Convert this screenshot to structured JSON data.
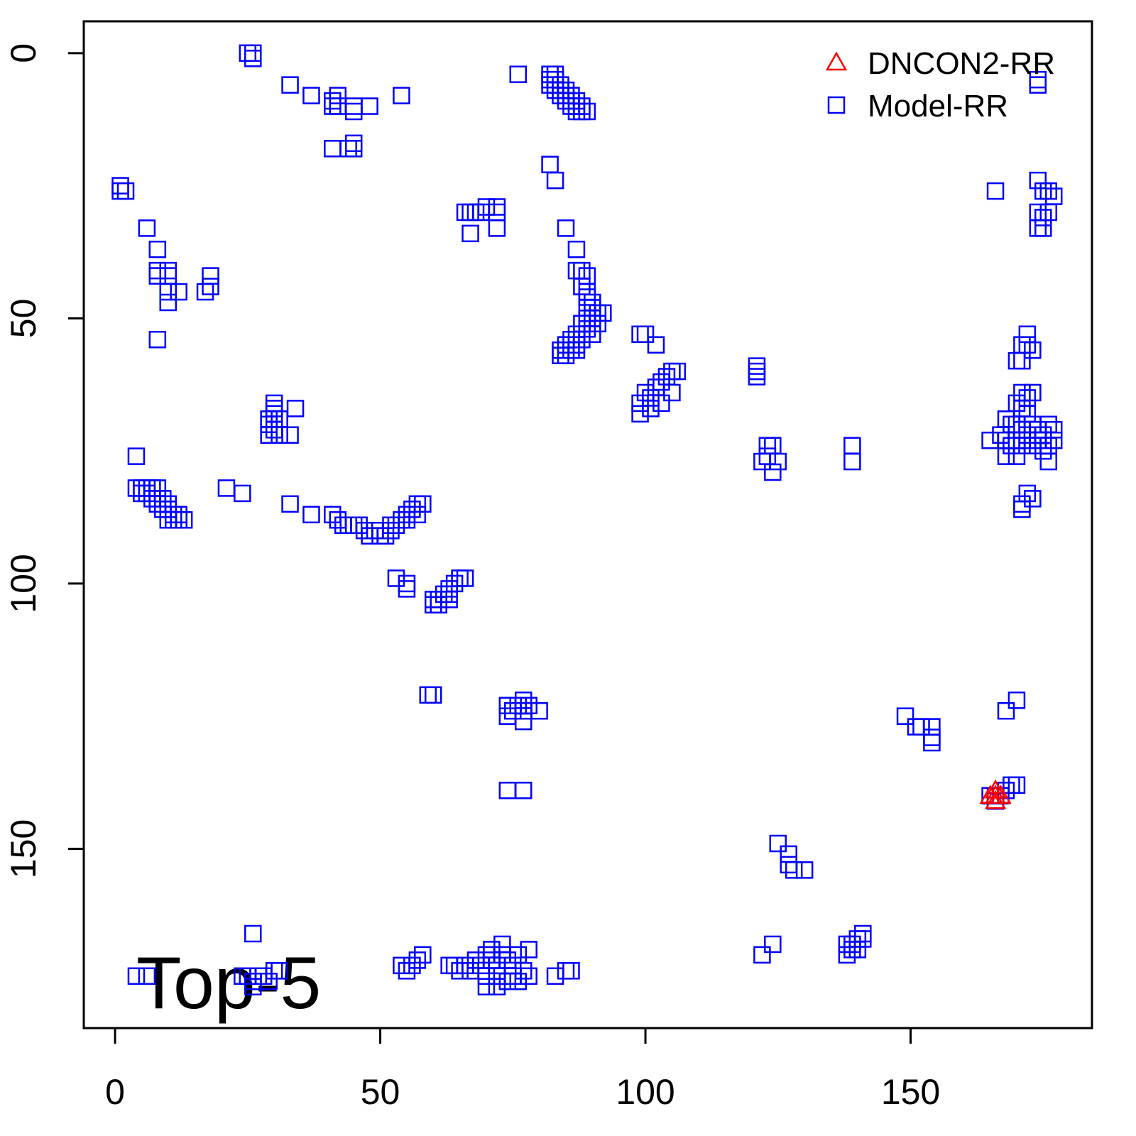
{
  "chart_data": {
    "type": "scatter",
    "annotation": "Top-5",
    "xlim": [
      -5.9,
      184.2
    ],
    "ylim": [
      183.8,
      -6
    ],
    "xticks": [
      0,
      50,
      100,
      150
    ],
    "yticks": [
      0,
      50,
      100,
      150
    ],
    "legend": "top-right",
    "series": [
      {
        "name": "DNCON2-RR",
        "color": "#ff0000",
        "marker": "triangle",
        "x": [
          165,
          166,
          167,
          166,
          166
        ],
        "values": [
          140,
          140,
          140,
          139,
          141
        ]
      },
      {
        "name": "Model-RR",
        "color": "#0000ff",
        "marker": "square",
        "x": [
          25,
          26,
          26,
          33,
          37,
          41,
          42,
          41,
          42,
          45,
          45,
          48,
          54,
          41,
          44,
          45,
          45,
          76,
          82,
          83,
          82,
          83,
          82,
          83,
          84,
          83,
          84,
          85,
          84,
          85,
          86,
          85,
          86,
          87,
          86,
          87,
          88,
          87,
          88,
          89,
          1,
          2,
          1,
          6,
          8,
          8,
          10,
          8,
          10,
          10,
          12,
          10,
          8,
          18,
          18,
          17,
          82,
          83,
          66,
          67,
          68,
          67,
          69,
          70,
          72,
          72,
          72,
          85,
          87,
          87,
          88,
          89,
          88,
          89,
          89,
          90,
          89,
          90,
          91,
          92,
          89,
          90,
          91,
          88,
          89,
          90,
          87,
          88,
          86,
          87,
          85,
          86,
          84,
          85,
          84,
          87,
          99,
          100,
          102,
          99,
          99,
          100,
          101,
          102,
          103,
          104,
          105,
          106,
          101,
          103,
          105,
          121,
          121,
          121,
          123,
          124,
          122,
          123,
          125,
          124,
          139,
          139,
          166,
          174,
          175,
          176,
          177,
          174,
          175,
          176,
          174,
          175,
          174,
          174,
          172,
          172,
          173,
          171,
          170,
          171,
          171,
          172,
          173,
          170,
          171,
          172,
          168,
          169,
          170,
          171,
          172,
          173,
          174,
          175,
          176,
          177,
          165,
          167,
          168,
          169,
          170,
          171,
          172,
          173,
          174,
          175,
          176,
          177,
          168,
          170,
          176,
          172,
          173,
          171,
          171,
          4,
          4,
          5,
          6,
          7,
          8,
          5,
          6,
          7,
          8,
          9,
          8,
          9,
          10,
          10,
          11,
          12,
          10,
          11,
          12,
          13,
          21,
          24,
          30,
          30,
          30,
          29,
          31,
          29,
          30,
          29,
          31,
          33,
          34,
          33,
          37,
          41,
          42,
          43,
          44,
          45,
          46,
          47,
          48,
          49,
          50,
          51,
          52,
          53,
          54,
          55,
          56,
          57,
          58,
          52,
          55,
          57,
          53,
          55,
          55,
          60,
          60,
          61,
          62,
          63,
          63,
          64,
          65,
          66,
          63,
          61,
          59,
          60,
          74,
          75,
          76,
          77,
          77,
          78,
          80,
          74,
          77,
          74,
          77,
          149,
          151,
          152,
          154,
          154,
          154,
          170,
          168,
          165,
          166,
          167,
          168,
          169,
          170,
          166,
          125,
          127,
          127,
          128,
          130,
          122,
          124,
          138,
          139,
          139,
          140,
          141,
          141,
          138,
          140,
          26,
          4,
          6,
          24,
          25,
          26,
          27,
          26,
          30,
          31,
          29,
          28,
          54,
          55,
          56,
          57,
          58,
          63,
          64,
          65,
          66,
          67,
          68,
          69,
          70,
          70,
          71,
          71,
          72,
          72,
          73,
          73,
          74,
          75,
          75,
          76,
          77,
          78,
          78,
          70,
          72,
          74,
          76,
          83,
          85,
          86
        ],
        "values": [
          0,
          0,
          1,
          6,
          8,
          9,
          8,
          10,
          10,
          10,
          11,
          10,
          8,
          18,
          18,
          17,
          18,
          4,
          4,
          4,
          5,
          5,
          6,
          6,
          6,
          7,
          7,
          7,
          8,
          8,
          8,
          9,
          9,
          9,
          10,
          10,
          10,
          11,
          11,
          11,
          25,
          26,
          26,
          33,
          37,
          41,
          41,
          42,
          42,
          45,
          45,
          47,
          54,
          42,
          44,
          45,
          21,
          24,
          30,
          30,
          30,
          34,
          30,
          29,
          29,
          30,
          33,
          33,
          37,
          41,
          41,
          42,
          44,
          45,
          46,
          47,
          48,
          48,
          49,
          49,
          50,
          50,
          51,
          51,
          52,
          53,
          53,
          54,
          54,
          55,
          55,
          56,
          56,
          57,
          57,
          56,
          53,
          53,
          55,
          68,
          66,
          64,
          65,
          63,
          62,
          61,
          60,
          60,
          67,
          66,
          64,
          59,
          60,
          61,
          74,
          74,
          77,
          76,
          77,
          79,
          74,
          77,
          26,
          24,
          26,
          26,
          27,
          30,
          31,
          30,
          33,
          33,
          5,
          6,
          53,
          55,
          56,
          55,
          58,
          58,
          64,
          65,
          64,
          66,
          67,
          68,
          69,
          70,
          70,
          71,
          72,
          70,
          71,
          72,
          70,
          71,
          73,
          72,
          73,
          74,
          73,
          74,
          73,
          74,
          73,
          75,
          74,
          73,
          76,
          76,
          77,
          83,
          84,
          85,
          86,
          76,
          82,
          82,
          82,
          82,
          82,
          83,
          83,
          84,
          84,
          84,
          85,
          86,
          85,
          86,
          87,
          87,
          88,
          88,
          88,
          88,
          82,
          83,
          66,
          67,
          68,
          69,
          69,
          70,
          71,
          72,
          72,
          72,
          67,
          85,
          87,
          87,
          88,
          89,
          89,
          89,
          89,
          90,
          91,
          90,
          91,
          91,
          90,
          89,
          88,
          87,
          86,
          85,
          85,
          89,
          88,
          87,
          99,
          100,
          101,
          103,
          104,
          103,
          102,
          101,
          102,
          100,
          99,
          99,
          103,
          104,
          121,
          121,
          123,
          124,
          123,
          122,
          124,
          123,
          124,
          125,
          126,
          139,
          139,
          125,
          127,
          127,
          127,
          129,
          130,
          122,
          124,
          140,
          140,
          140,
          139,
          138,
          138,
          141,
          149,
          151,
          153,
          154,
          154,
          170,
          168,
          168,
          168,
          169,
          167,
          166,
          167,
          170,
          169,
          166,
          174,
          174,
          174,
          174,
          175,
          174,
          176,
          173,
          173,
          175,
          174,
          172,
          173,
          172,
          171,
          170,
          172,
          172,
          173,
          172,
          173,
          171,
          172,
          170,
          174,
          169,
          171,
          172,
          174,
          168,
          170,
          171,
          172,
          174,
          170,
          173,
          169,
          174,
          176,
          176,
          175,
          175,
          174,
          173,
          173
        ]
      }
    ]
  }
}
